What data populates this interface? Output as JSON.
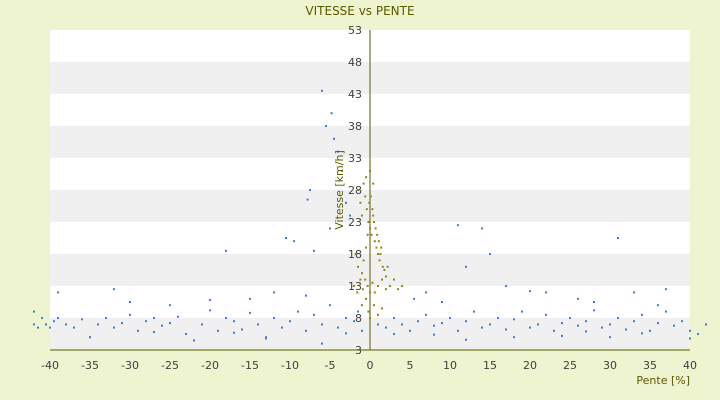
{
  "chart_data": {
    "type": "scatter",
    "title": "VITESSE vs PENTE",
    "xlabel": "Pente [%]",
    "ylabel": "Vitesse [km/h]",
    "xlim": [
      -40,
      40
    ],
    "ylim": [
      3,
      53
    ],
    "x_ticks": [
      -40,
      -35,
      -30,
      -25,
      -20,
      -15,
      -10,
      -5,
      0,
      5,
      10,
      15,
      20,
      25,
      30,
      35,
      40
    ],
    "y_ticks": [
      3,
      8,
      13,
      18,
      23,
      28,
      33,
      38,
      43,
      48,
      53
    ],
    "grid": "horizontal bands",
    "legend": "none",
    "colors": {
      "plot_bg": "#ffffff",
      "band": "#f0f0f0",
      "page_bg": "#eef3d0",
      "series_blue": "#3d7fd0",
      "series_olive": "#8a8a14",
      "axis": "#5a5a00"
    },
    "series": [
      {
        "color": "#3d7fd0",
        "points": [
          [
            -42,
            7
          ],
          [
            -41.5,
            6.5
          ],
          [
            -41,
            8
          ],
          [
            -40.5,
            7
          ],
          [
            -40,
            6.5
          ],
          [
            -39.5,
            7.5
          ],
          [
            -39,
            8
          ],
          [
            -38,
            7
          ],
          [
            -37,
            6.5
          ],
          [
            -36,
            7.8
          ],
          [
            -35,
            5
          ],
          [
            -34,
            7
          ],
          [
            -33,
            8
          ],
          [
            -32,
            6.5
          ],
          [
            -31,
            7.2
          ],
          [
            -30,
            8.5
          ],
          [
            -29,
            6
          ],
          [
            -28,
            7.5
          ],
          [
            -27,
            8
          ],
          [
            -26,
            6.8
          ],
          [
            -25,
            7.2
          ],
          [
            -24,
            8.2
          ],
          [
            -23,
            5.5
          ],
          [
            -22,
            4.5
          ],
          [
            -21,
            7
          ],
          [
            -20,
            9.2
          ],
          [
            -19,
            6
          ],
          [
            -18,
            8
          ],
          [
            -17,
            7.5
          ],
          [
            -16,
            6.2
          ],
          [
            -15,
            8.8
          ],
          [
            -14,
            7
          ],
          [
            -13,
            5
          ],
          [
            -12,
            8
          ],
          [
            -11,
            6.5
          ],
          [
            -10,
            7.5
          ],
          [
            -9,
            9
          ],
          [
            -8,
            6
          ],
          [
            -7,
            8.5
          ],
          [
            -6,
            7
          ],
          [
            -5,
            10
          ],
          [
            -4,
            6.5
          ],
          [
            -3,
            8
          ],
          [
            -2,
            7.5
          ],
          [
            -1.5,
            9
          ],
          [
            -1,
            6
          ],
          [
            1,
            7
          ],
          [
            2,
            6.5
          ],
          [
            3,
            8
          ],
          [
            4,
            7
          ],
          [
            5,
            6
          ],
          [
            6,
            7.5
          ],
          [
            7,
            8.5
          ],
          [
            8,
            6.8
          ],
          [
            9,
            7.2
          ],
          [
            10,
            8
          ],
          [
            11,
            6
          ],
          [
            12,
            7.5
          ],
          [
            13,
            9
          ],
          [
            14,
            6.5
          ],
          [
            15,
            7
          ],
          [
            16,
            8
          ],
          [
            17,
            6.2
          ],
          [
            18,
            7.8
          ],
          [
            19,
            9
          ],
          [
            20,
            6.5
          ],
          [
            21,
            7
          ],
          [
            22,
            8.5
          ],
          [
            23,
            6
          ],
          [
            24,
            7.2
          ],
          [
            25,
            8
          ],
          [
            26,
            6.8
          ],
          [
            27,
            7.5
          ],
          [
            28,
            9.2
          ],
          [
            29,
            6.5
          ],
          [
            30,
            7
          ],
          [
            31,
            8
          ],
          [
            32,
            6.2
          ],
          [
            33,
            7.5
          ],
          [
            34,
            8.5
          ],
          [
            35,
            6
          ],
          [
            36,
            7.2
          ],
          [
            37,
            9
          ],
          [
            38,
            6.8
          ],
          [
            39,
            7.5
          ],
          [
            40,
            6
          ],
          [
            41,
            5.5
          ],
          [
            42,
            7
          ],
          [
            -42,
            9
          ],
          [
            -39,
            12
          ],
          [
            -32,
            12.5
          ],
          [
            -30,
            10.5
          ],
          [
            -25,
            10
          ],
          [
            -20,
            10.8
          ],
          [
            -15,
            11
          ],
          [
            -12,
            12
          ],
          [
            -8,
            11.5
          ],
          [
            -7.5,
            28
          ],
          [
            -9.5,
            20
          ],
          [
            -10.5,
            20.5
          ],
          [
            -7.8,
            26.5
          ],
          [
            -6,
            43.5
          ],
          [
            -5.5,
            38
          ],
          [
            -4.8,
            40
          ],
          [
            -4.5,
            36
          ],
          [
            -4,
            34
          ],
          [
            -3.5,
            31
          ],
          [
            -3,
            26
          ],
          [
            -2.5,
            24
          ],
          [
            -18,
            18.5
          ],
          [
            -7,
            18.5
          ],
          [
            -5,
            22
          ],
          [
            11,
            22.5
          ],
          [
            14,
            22
          ],
          [
            31,
            20.5
          ],
          [
            15,
            18
          ],
          [
            17,
            13
          ],
          [
            22,
            12
          ],
          [
            26,
            11
          ],
          [
            33,
            12
          ],
          [
            37,
            12.5
          ],
          [
            12,
            16
          ],
          [
            20,
            12.2
          ],
          [
            28,
            10.5
          ],
          [
            36,
            10
          ],
          [
            5.5,
            11
          ],
          [
            7,
            12
          ],
          [
            9,
            10.5
          ],
          [
            -6,
            4
          ],
          [
            -22,
            4.5
          ],
          [
            -13,
            4.8
          ],
          [
            -35,
            5
          ],
          [
            12,
            4.6
          ],
          [
            18,
            5
          ],
          [
            24,
            5.2
          ],
          [
            30,
            5
          ],
          [
            40,
            4.8
          ],
          [
            8,
            5.4
          ],
          [
            3,
            5.5
          ],
          [
            -3,
            5.6
          ],
          [
            -27,
            5.8
          ],
          [
            -17,
            5.7
          ],
          [
            34,
            5.6
          ],
          [
            27,
            5.9
          ]
        ]
      },
      {
        "color": "#8a8a14",
        "points": [
          [
            -1.5,
            28
          ],
          [
            -1.2,
            26
          ],
          [
            -1,
            24
          ],
          [
            -0.8,
            29
          ],
          [
            -0.6,
            27
          ],
          [
            -0.4,
            25
          ],
          [
            -0.2,
            23
          ],
          [
            0,
            22
          ],
          [
            0.2,
            21
          ],
          [
            0.4,
            24
          ],
          [
            0.6,
            20
          ],
          [
            0.8,
            19
          ],
          [
            1,
            18
          ],
          [
            1.2,
            17
          ],
          [
            1.4,
            19
          ],
          [
            1.6,
            16
          ],
          [
            1.8,
            15.5
          ],
          [
            2,
            14.5
          ],
          [
            2.2,
            16
          ],
          [
            2.5,
            13
          ],
          [
            3,
            14
          ],
          [
            3.5,
            12.5
          ],
          [
            4,
            13
          ],
          [
            -1.8,
            18
          ],
          [
            -1.5,
            16
          ],
          [
            -1.2,
            14
          ],
          [
            -1,
            15
          ],
          [
            -0.8,
            17
          ],
          [
            -0.5,
            19
          ],
          [
            -0.3,
            21
          ],
          [
            -0.1,
            26
          ],
          [
            0.1,
            27
          ],
          [
            0.3,
            25
          ],
          [
            0.5,
            23
          ],
          [
            0.7,
            22
          ],
          [
            0.9,
            21
          ],
          [
            1.1,
            20
          ],
          [
            1.3,
            18
          ],
          [
            -2,
            13
          ],
          [
            -1.6,
            12
          ],
          [
            -1.3,
            13.5
          ],
          [
            -0.9,
            12.5
          ],
          [
            -0.6,
            14
          ],
          [
            -0.3,
            13
          ],
          [
            0,
            12
          ],
          [
            0.3,
            13.5
          ],
          [
            0.6,
            12
          ],
          [
            1,
            13
          ],
          [
            1.5,
            14
          ],
          [
            2,
            12.5
          ],
          [
            -0.5,
            30
          ],
          [
            0,
            31
          ],
          [
            0.4,
            29
          ],
          [
            -0.2,
            9
          ],
          [
            0.5,
            10
          ],
          [
            1,
            8.5
          ],
          [
            1.5,
            9.5
          ],
          [
            -1,
            10
          ],
          [
            -0.5,
            11
          ],
          [
            0,
            8
          ]
        ]
      }
    ]
  }
}
